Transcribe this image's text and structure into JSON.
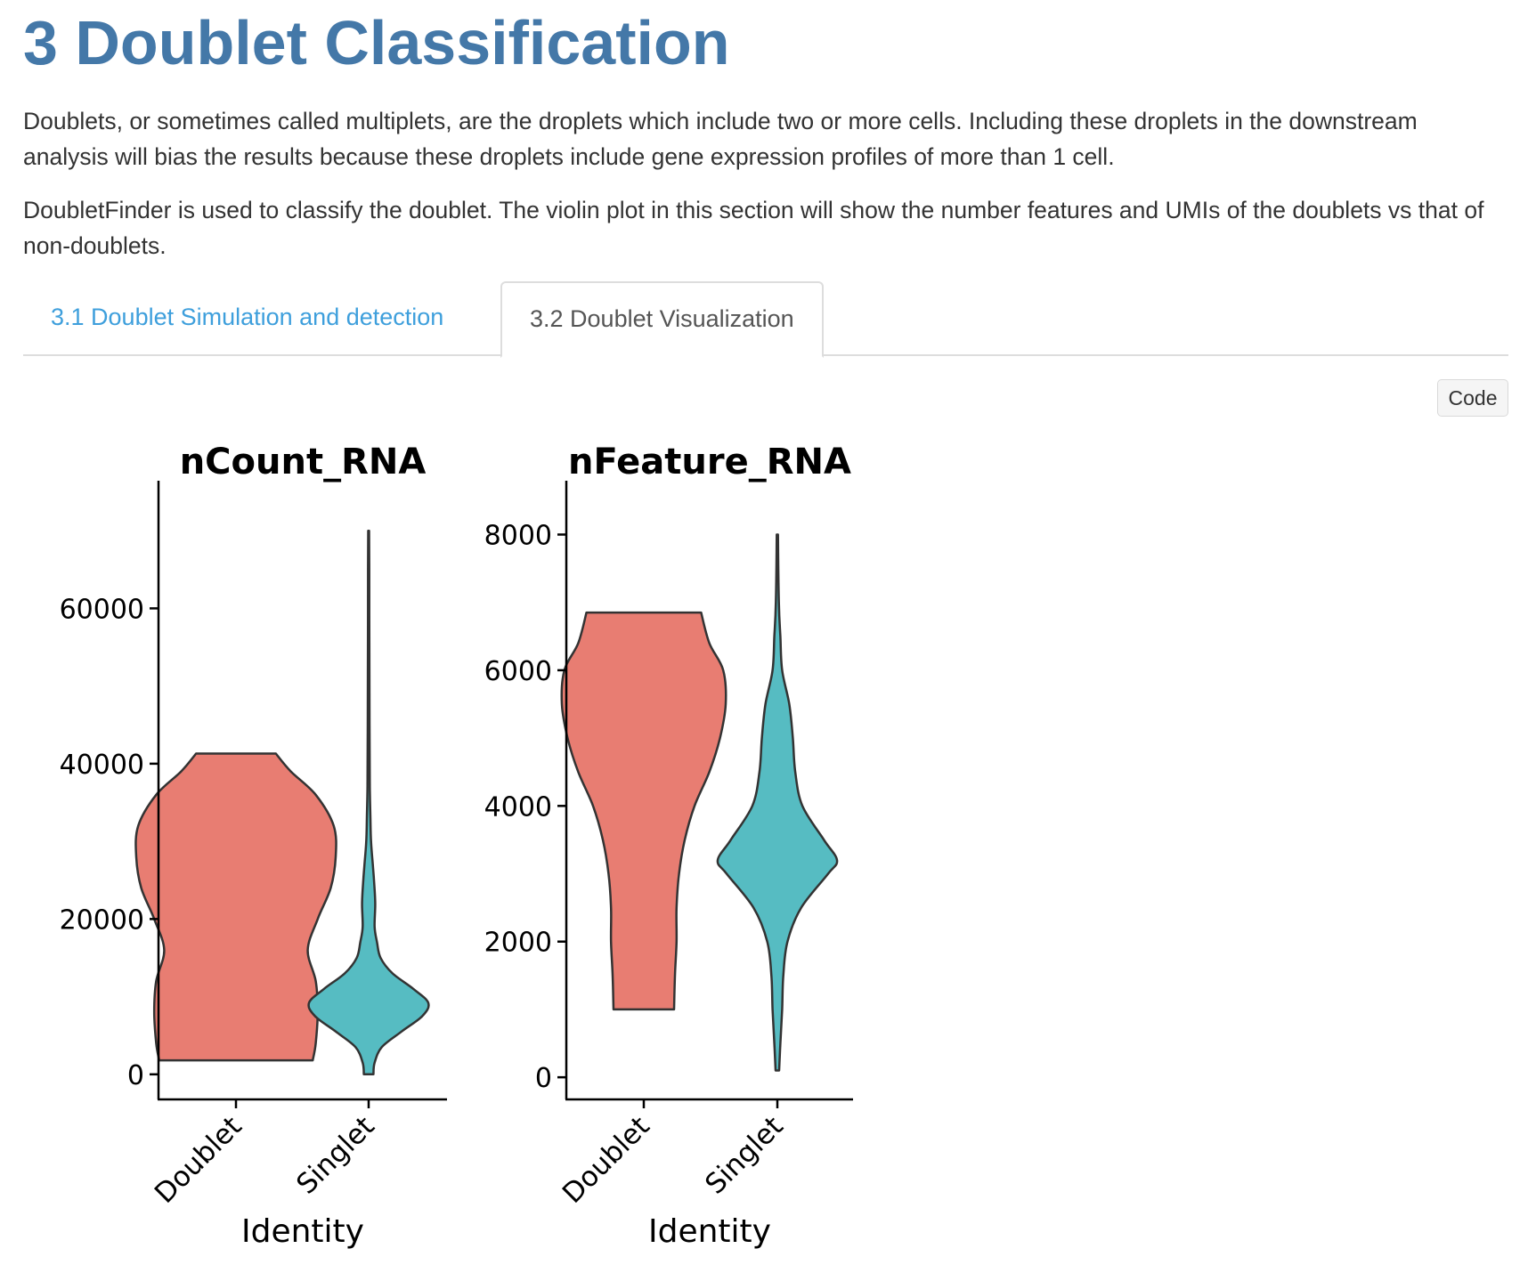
{
  "section": {
    "title": "3 Doublet Classification",
    "paragraphs": [
      "Doublets, or sometimes called multiplets, are the droplets which include two or more cells. Including these droplets in the downstream analysis will bias the results because these droplets include gene expression profiles of more than 1 cell.",
      "DoubletFinder is used to classify the doublet. The violin plot in this section will show the number features and UMIs of the doublets vs that of non-doublets."
    ]
  },
  "tabs": [
    {
      "label": "3.1 Doublet Simulation and detection",
      "active": false
    },
    {
      "label": "3.2 Doublet Visualization",
      "active": true
    }
  ],
  "code_button": {
    "label": "Code"
  },
  "colors": {
    "doublet": "#e87d72",
    "singlet": "#56bcc2",
    "title": "#4478a8",
    "tab_link": "#3e9fdc"
  },
  "chart_data": [
    {
      "type": "violin",
      "title": "nCount_RNA",
      "xlabel": "Identity",
      "ylabel": "",
      "ylim": [
        -3000,
        73000
      ],
      "yticks": [
        0,
        20000,
        40000,
        60000
      ],
      "categories": [
        "Doublet",
        "Singlet"
      ],
      "series": [
        {
          "name": "Doublet",
          "min": 1800,
          "max": 41300,
          "profile": [
            [
              1800,
              0.77
            ],
            [
              4000,
              0.8
            ],
            [
              8000,
              0.82
            ],
            [
              12000,
              0.8
            ],
            [
              16000,
              0.72
            ],
            [
              20000,
              0.82
            ],
            [
              24000,
              0.95
            ],
            [
              28000,
              1.0
            ],
            [
              32000,
              0.98
            ],
            [
              36000,
              0.8
            ],
            [
              39000,
              0.55
            ],
            [
              41300,
              0.4
            ]
          ]
        },
        {
          "name": "Singlet",
          "min": 0,
          "max": 70000,
          "profile": [
            [
              0,
              0.08
            ],
            [
              1500,
              0.1
            ],
            [
              3500,
              0.22
            ],
            [
              5500,
              0.55
            ],
            [
              7500,
              0.9
            ],
            [
              9200,
              1.0
            ],
            [
              11000,
              0.75
            ],
            [
              13000,
              0.4
            ],
            [
              15000,
              0.2
            ],
            [
              17000,
              0.14
            ],
            [
              19000,
              0.1
            ],
            [
              22000,
              0.11
            ],
            [
              25000,
              0.09
            ],
            [
              27000,
              0.07
            ],
            [
              30000,
              0.04
            ],
            [
              33000,
              0.03
            ],
            [
              37000,
              0.02
            ],
            [
              45000,
              0.015
            ],
            [
              55000,
              0.012
            ],
            [
              65000,
              0.01
            ],
            [
              70000,
              0.008
            ]
          ]
        }
      ]
    },
    {
      "type": "violin",
      "title": "nFeature_RNA",
      "xlabel": "Identity",
      "ylabel": "",
      "ylim": [
        -300,
        8400
      ],
      "yticks": [
        0,
        2000,
        4000,
        6000,
        8000
      ],
      "categories": [
        "Doublet",
        "Singlet"
      ],
      "series": [
        {
          "name": "Doublet",
          "min": 1000,
          "max": 6850,
          "profile": [
            [
              1000,
              0.37
            ],
            [
              1500,
              0.38
            ],
            [
              2000,
              0.4
            ],
            [
              2500,
              0.4
            ],
            [
              3000,
              0.43
            ],
            [
              3500,
              0.5
            ],
            [
              4000,
              0.62
            ],
            [
              4500,
              0.8
            ],
            [
              5000,
              0.93
            ],
            [
              5500,
              1.0
            ],
            [
              6000,
              0.97
            ],
            [
              6400,
              0.8
            ],
            [
              6850,
              0.7
            ]
          ]
        },
        {
          "name": "Singlet",
          "min": 100,
          "max": 8000,
          "profile": [
            [
              100,
              0.03
            ],
            [
              500,
              0.05
            ],
            [
              1000,
              0.08
            ],
            [
              1500,
              0.1
            ],
            [
              2000,
              0.17
            ],
            [
              2500,
              0.4
            ],
            [
              3000,
              0.85
            ],
            [
              3200,
              1.0
            ],
            [
              3500,
              0.78
            ],
            [
              4000,
              0.42
            ],
            [
              4500,
              0.3
            ],
            [
              5000,
              0.26
            ],
            [
              5500,
              0.2
            ],
            [
              6000,
              0.08
            ],
            [
              6500,
              0.05
            ],
            [
              7000,
              0.025
            ],
            [
              8000,
              0.01
            ]
          ]
        }
      ]
    }
  ]
}
